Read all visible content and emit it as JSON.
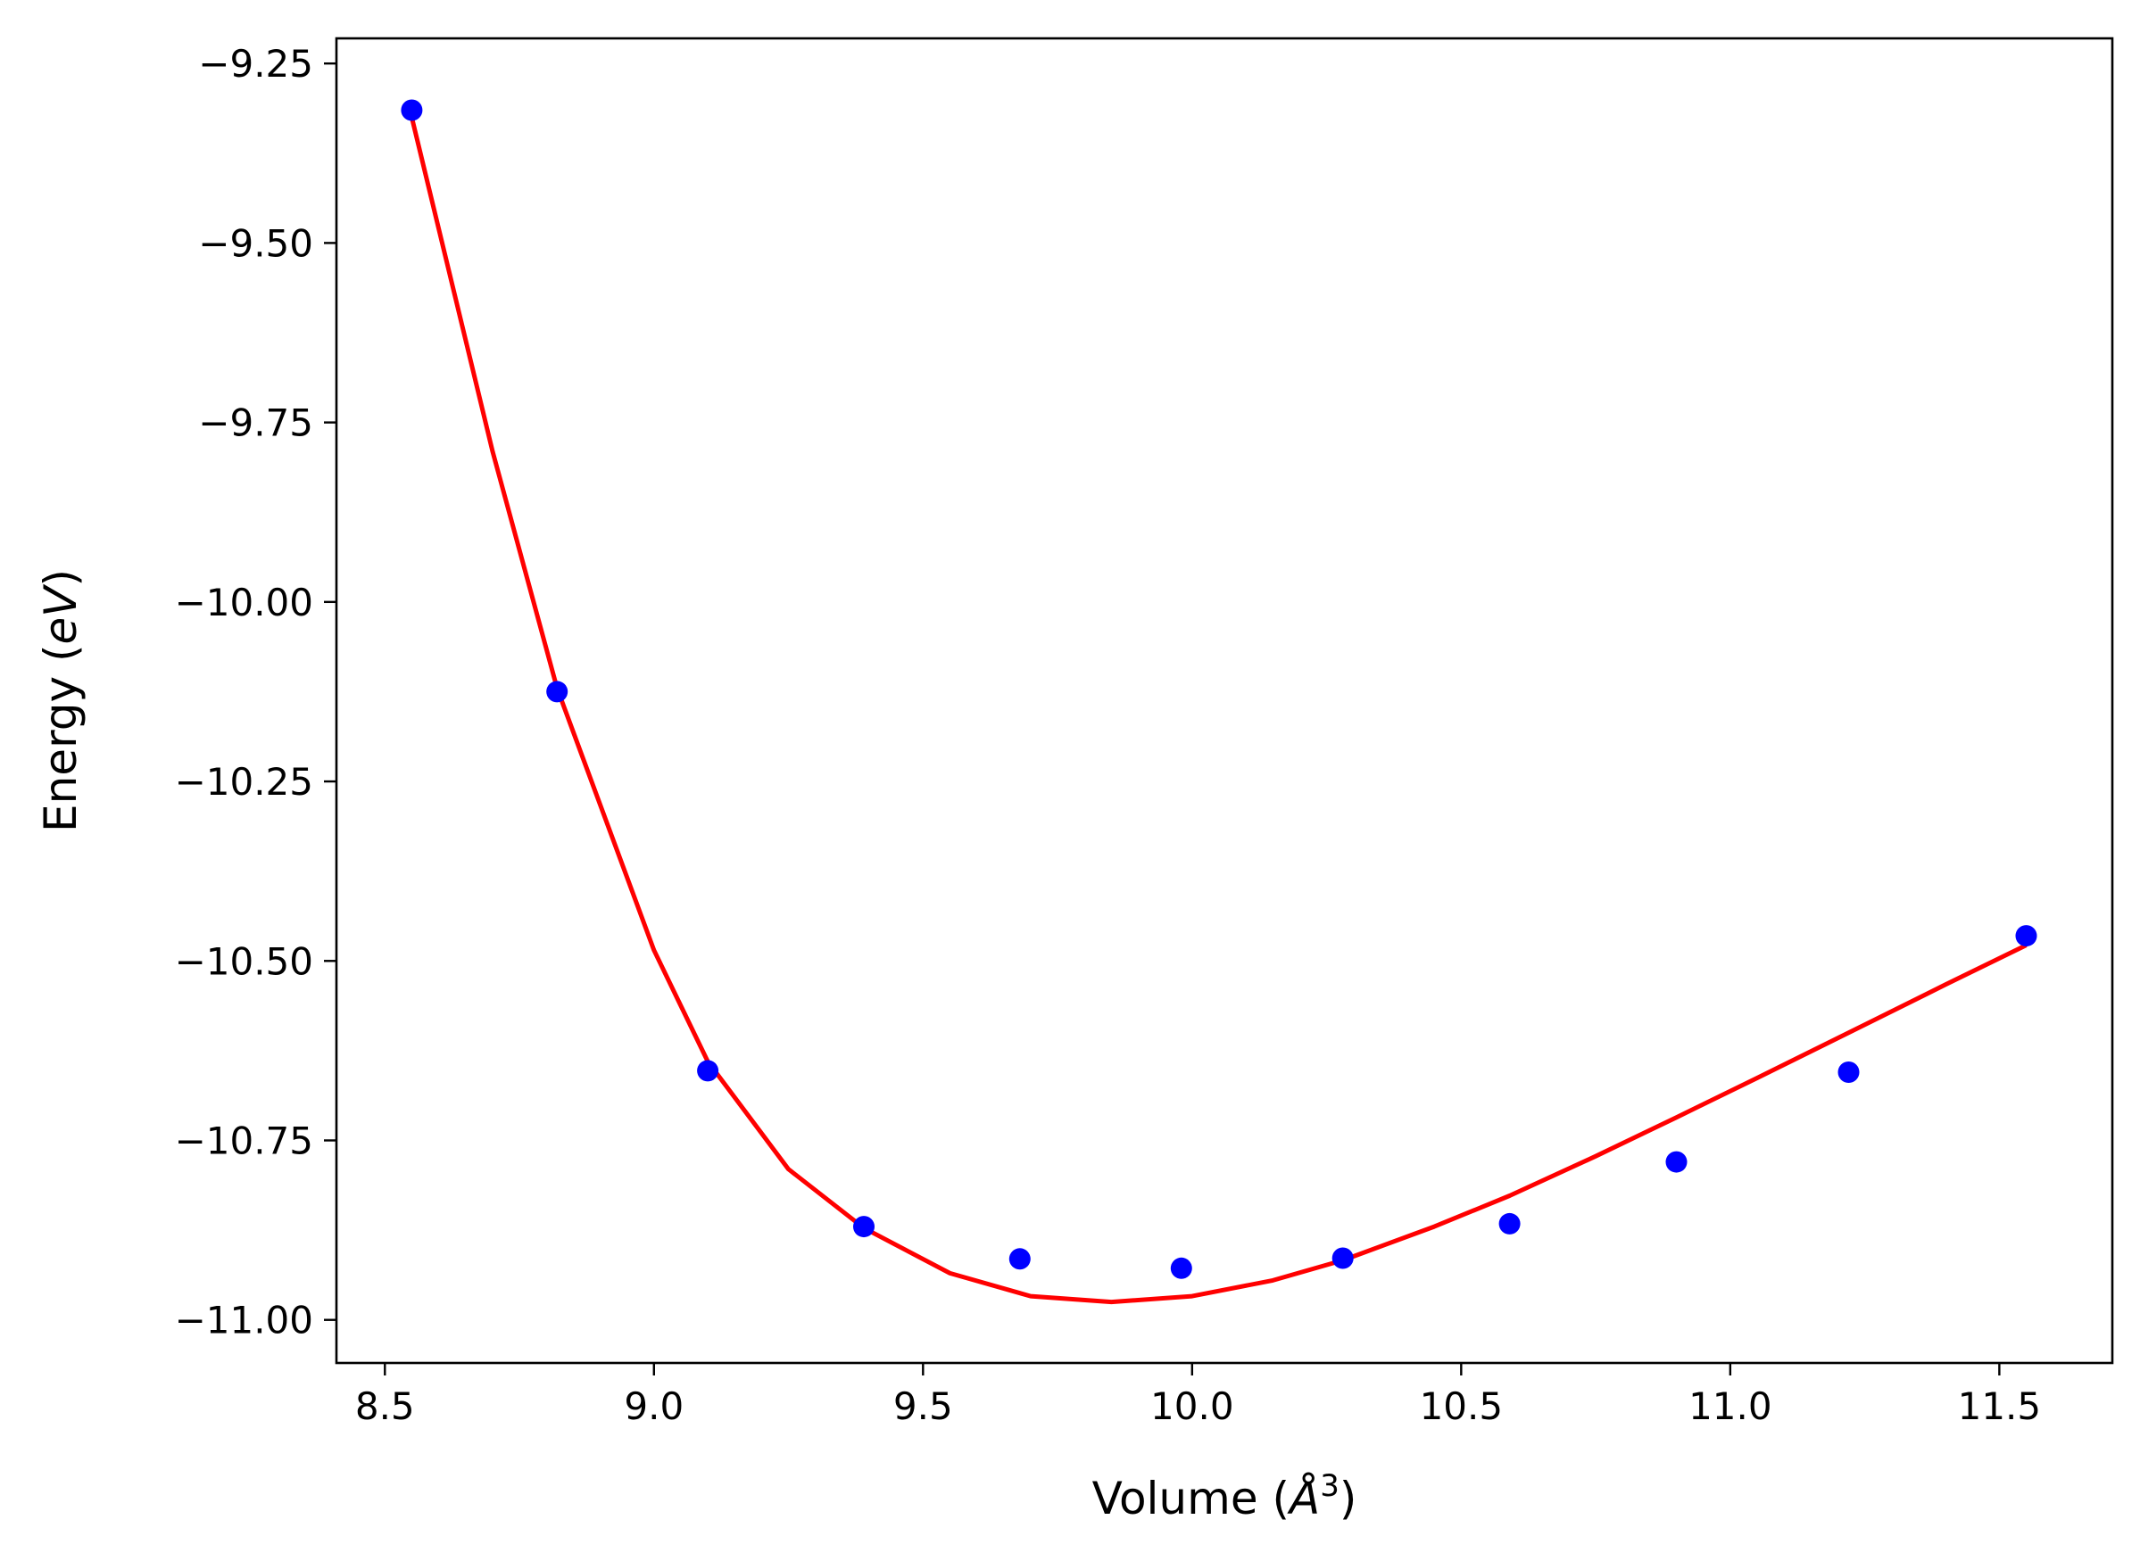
{
  "chart_data": {
    "type": "scatter",
    "title": "",
    "xlabel": {
      "pre": "Volume (",
      "italic": "Å",
      "sup": "3",
      "post": ")"
    },
    "ylabel": {
      "pre": "Energy (",
      "italic": "eV",
      "post": ")"
    },
    "xlim": [
      8.41,
      11.71
    ],
    "ylim": [
      -11.06,
      -9.215
    ],
    "xticks": [
      8.5,
      9.0,
      9.5,
      10.0,
      10.5,
      11.0,
      11.5
    ],
    "xtick_labels": [
      "8.5",
      "9.0",
      "9.5",
      "10.0",
      "10.5",
      "11.0",
      "11.5"
    ],
    "yticks": [
      -9.25,
      -9.5,
      -9.75,
      -10.0,
      -10.25,
      -10.5,
      -10.75,
      -11.0
    ],
    "ytick_labels": [
      "−9.25",
      "−9.50",
      "−9.75",
      "−10.00",
      "−10.25",
      "−10.50",
      "−10.75",
      "−11.00"
    ],
    "grid": false,
    "points": {
      "color": "#0000ff",
      "x": [
        8.55,
        8.82,
        9.1,
        9.39,
        9.68,
        9.98,
        10.28,
        10.59,
        10.9,
        11.22,
        11.55
      ],
      "y": [
        -9.315,
        -10.125,
        -10.653,
        -10.87,
        -10.915,
        -10.928,
        -10.914,
        -10.866,
        -10.78,
        -10.655,
        -10.465
      ]
    },
    "fit": {
      "color": "#ff0000",
      "x": [
        8.55,
        8.7,
        8.82,
        9.0,
        9.1,
        9.25,
        9.39,
        9.55,
        9.7,
        9.85,
        10.0,
        10.15,
        10.28,
        10.45,
        10.59,
        10.75,
        10.9,
        11.05,
        11.22,
        11.4,
        11.55
      ],
      "y": [
        -9.325,
        -9.79,
        -10.12,
        -10.485,
        -10.64,
        -10.79,
        -10.872,
        -10.935,
        -10.967,
        -10.975,
        -10.967,
        -10.945,
        -10.917,
        -10.87,
        -10.827,
        -10.772,
        -10.718,
        -10.663,
        -10.6,
        -10.533,
        -10.478
      ]
    }
  }
}
